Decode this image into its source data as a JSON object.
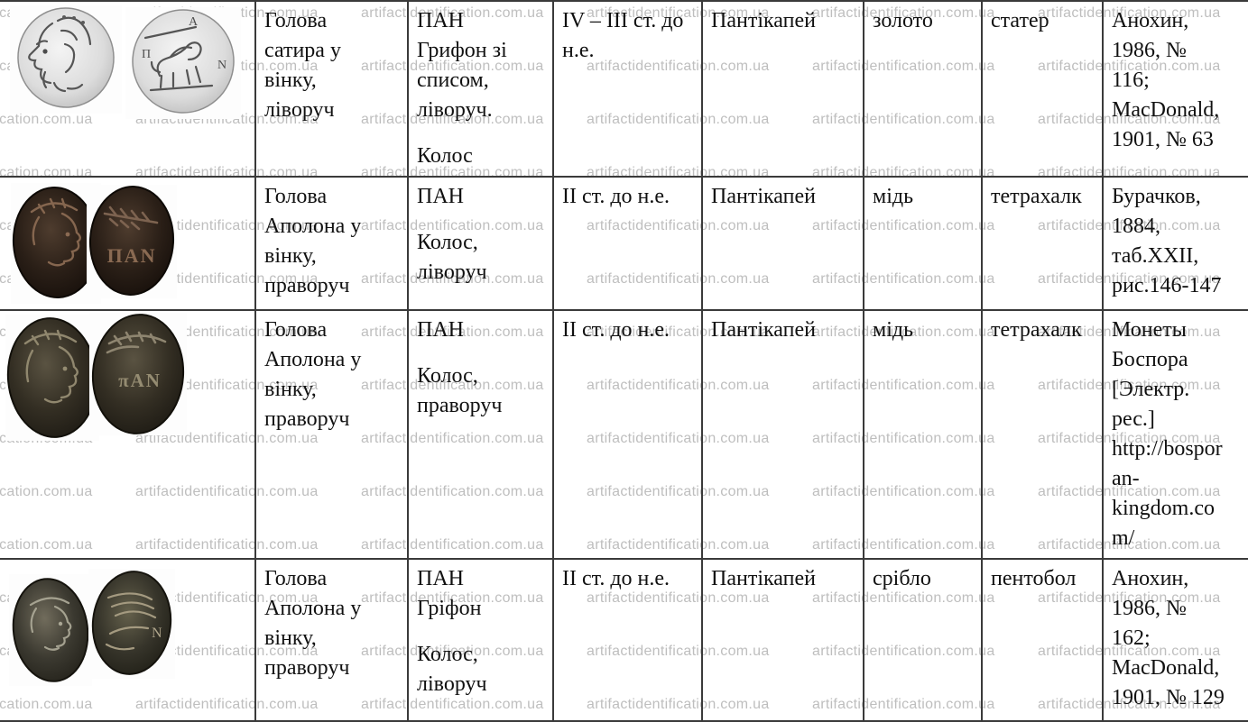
{
  "watermark": {
    "text": "artifactidentification.com.ua"
  },
  "colors": {
    "border": "#3a3a3a",
    "text": "#111111",
    "watermark": "#bcbcbc"
  },
  "table": {
    "rows": [
      {
        "images": {
          "obverse": "satyr-head-in-wreath-facing-left-silver-coin",
          "reverse": "griffin-with-spear-facing-left-pan-legend-coin"
        },
        "obverse": "Голова\nсатира у\nвінку,\nліворуч",
        "reverse": [
          "ПАН\nГрифон зі\nсписом,\nліворуч.",
          "Колос"
        ],
        "date": "IV – III ст. до\nн.е.",
        "mint": "Пантікапей",
        "metal": "золото",
        "denomination": "статер",
        "reference": "Анохин,\n1986, №\n116;\nMacDonald,\n1901, № 63"
      },
      {
        "images": {
          "obverse": "apollo-head-in-wreath-facing-right-dark-copper-coin",
          "reverse": "pan-legend-with-grain-ear-dark-copper-coin"
        },
        "obverse": "Голова\nАполона у\nвінку,\nправоруч",
        "reverse": [
          "ПАН",
          "Колос,\nліворуч"
        ],
        "date": "II ст. до н.е.",
        "mint": "Пантікапей",
        "metal": "мідь",
        "denomination": "тетрахалк",
        "reference": "Бурачков,\n1884,\nтаб.XXII,\nрис.146-147"
      },
      {
        "images": {
          "obverse": "apollo-head-in-wreath-facing-right-olive-copper-coin",
          "reverse": "pan-legend-with-grain-ear-olive-copper-coin"
        },
        "obverse": "Голова\nАполона у\nвінку,\nправоруч",
        "reverse": [
          "ПАН",
          "Колос,\nправоруч"
        ],
        "date": "II ст. до н.е.",
        "mint": "Пантікапей",
        "metal": "мідь",
        "denomination": "тетрахалк",
        "reference": "Монеты\nБоспора\n[Электр.\nрес.]\nhttp://bospor\nan-\nkingdom.co\nm/"
      },
      {
        "images": {
          "obverse": "apollo-head-in-wreath-facing-right-small-silver-coin",
          "reverse": "griffin-wing-grain-ear-small-silver-coin"
        },
        "obverse": "Голова\nАполона у\nвінку,\nправоруч",
        "reverse": [
          "ПАН\nГріфон",
          "Колос,\nліворуч"
        ],
        "date": "II ст. до н.е.",
        "mint": "Пантікапей",
        "metal": "срібло",
        "denomination": "пентобол",
        "reference": "Анохин,\n1986, №\n162;\nMacDonald,\n1901, № 129"
      }
    ]
  }
}
